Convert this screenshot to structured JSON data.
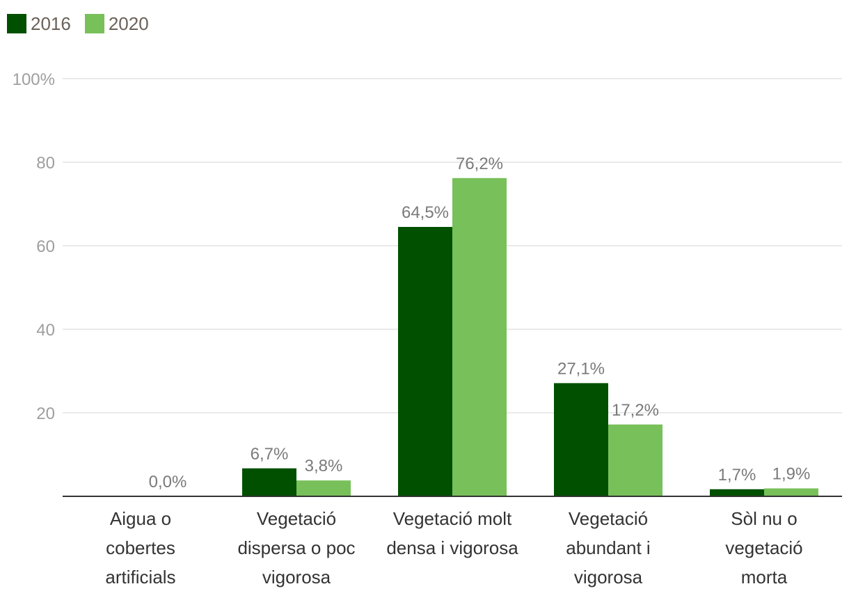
{
  "chart_data": {
    "type": "bar",
    "title": "",
    "xlabel": "",
    "ylabel": "",
    "ylim": [
      0,
      100
    ],
    "yticks": [
      {
        "value": 20,
        "label": "20"
      },
      {
        "value": 40,
        "label": "40"
      },
      {
        "value": 60,
        "label": "60"
      },
      {
        "value": 80,
        "label": "80"
      },
      {
        "value": 100,
        "label": "100%"
      }
    ],
    "grid": true,
    "legend_position": "top-left",
    "categories": [
      [
        "Aigua o",
        "cobertes",
        "artificials"
      ],
      [
        "Vegetació",
        "dispersa o poc",
        "vigorosa"
      ],
      [
        "Vegetació molt",
        "densa i vigorosa"
      ],
      [
        "Vegetació",
        "abundant i",
        "vigorosa"
      ],
      [
        "Sòl nu o",
        "vegetació",
        "morta"
      ]
    ],
    "series": [
      {
        "name": "2016",
        "color": "#005000",
        "values": [
          null,
          6.7,
          64.5,
          27.1,
          1.7
        ],
        "labels": [
          "",
          "6,7%",
          "64,5%",
          "27,1%",
          "1,7%"
        ]
      },
      {
        "name": "2020",
        "color": "#78c05a",
        "values": [
          0.0,
          3.8,
          76.2,
          17.2,
          1.9
        ],
        "labels": [
          "0,0%",
          "3,8%",
          "76,2%",
          "17,2%",
          "1,9%"
        ]
      }
    ]
  }
}
